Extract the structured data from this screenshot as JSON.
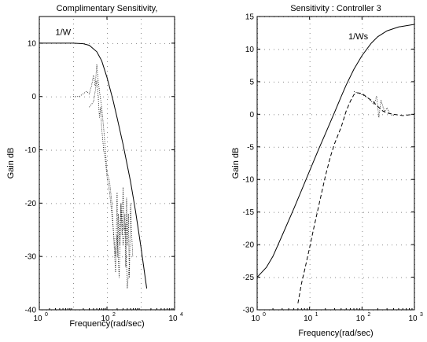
{
  "chart_data": [
    {
      "type": "line",
      "title": "Complimentary Sensitivity,",
      "xlabel": "Frequency(rad/sec)",
      "ylabel": "Gain dB",
      "xscale": "log",
      "xlim": [
        1,
        10000
      ],
      "ylim": [
        -40,
        15
      ],
      "xticks": [
        1,
        100,
        10000
      ],
      "xtick_labels": [
        {
          "base": "10",
          "exp": "0"
        },
        {
          "base": "10",
          "exp": "2"
        },
        {
          "base": "10",
          "exp": "4"
        }
      ],
      "yticks": [
        -40,
        -30,
        -20,
        -10,
        0,
        10
      ],
      "ytick_labels": [
        "-40",
        "-30",
        "-20",
        "-10",
        "0",
        "10"
      ],
      "annotations": [
        {
          "text": "1/W",
          "x": 3,
          "y": 11.5
        }
      ],
      "series": [
        {
          "name": "1/W",
          "style": "solid",
          "x": [
            1,
            10,
            20,
            30,
            50,
            70,
            100,
            150,
            200,
            300,
            500,
            700,
            1000,
            1500
          ],
          "y": [
            10,
            10,
            9.9,
            9.6,
            8.4,
            6.7,
            3.6,
            -0.6,
            -4.0,
            -9.0,
            -16.0,
            -21.5,
            -28.0,
            -36.0
          ]
        },
        {
          "style": "dotted",
          "x": [
            10,
            15,
            20,
            25,
            30,
            35,
            40,
            45,
            50,
            55,
            60,
            70,
            80,
            90,
            100,
            120,
            140,
            160,
            180,
            200,
            210,
            220,
            240,
            260,
            280,
            300,
            320,
            340,
            360,
            380,
            400,
            430,
            460,
            500,
            540,
            580
          ],
          "y": [
            0,
            0,
            0.5,
            1,
            0.5,
            2,
            4,
            2,
            6,
            3,
            1,
            -2,
            -6,
            -10,
            -14,
            -16,
            -20,
            -27,
            -33,
            -18,
            -30,
            -22,
            -28,
            -20,
            -26,
            -17,
            -25,
            -22,
            -32,
            -19,
            -28,
            -22,
            -34,
            -20,
            -26,
            -30
          ]
        },
        {
          "style": "dotted",
          "x": [
            30,
            40,
            45,
            50,
            55,
            60,
            65,
            70,
            80,
            90,
            100,
            120,
            150,
            180,
            200,
            230,
            260,
            300,
            350,
            400,
            450
          ],
          "y": [
            -2,
            -1,
            1,
            3,
            0,
            -4,
            -2,
            -6,
            -10,
            -12,
            -15,
            -18,
            -24,
            -30,
            -26,
            -34,
            -20,
            -28,
            -24,
            -36,
            -32
          ]
        }
      ]
    },
    {
      "type": "line",
      "title": "Sensitivity : Controller 3",
      "xlabel": "Frequency(rad/sec)",
      "ylabel": "Gain dB",
      "xscale": "log",
      "xlim": [
        1,
        1000
      ],
      "ylim": [
        -30,
        15
      ],
      "xticks": [
        1,
        10,
        100,
        1000
      ],
      "xtick_labels": [
        {
          "base": "10",
          "exp": "0"
        },
        {
          "base": "10",
          "exp": "1"
        },
        {
          "base": "10",
          "exp": "2"
        },
        {
          "base": "10",
          "exp": "3"
        }
      ],
      "yticks": [
        -30,
        -25,
        -20,
        -15,
        -10,
        -5,
        0,
        5,
        10,
        15
      ],
      "ytick_labels": [
        "-30",
        "-25",
        "-20",
        "-15",
        "-10",
        "-5",
        "0",
        "5",
        "10",
        "15"
      ],
      "annotations": [
        {
          "text": "1/Ws",
          "x": 55,
          "y": 11.5
        }
      ],
      "series": [
        {
          "name": "1/Ws",
          "style": "solid",
          "x": [
            1,
            1.5,
            2,
            3,
            5,
            7,
            10,
            15,
            20,
            30,
            40,
            50,
            70,
            100,
            150,
            200,
            300,
            500,
            1000
          ],
          "y": [
            -25,
            -23.5,
            -21.8,
            -18.6,
            -14.5,
            -11.7,
            -8.7,
            -5.3,
            -3.0,
            0.3,
            2.7,
            4.5,
            6.9,
            9.0,
            10.9,
            11.9,
            12.8,
            13.4,
            13.8
          ]
        },
        {
          "style": "dashed",
          "x": [
            6,
            7,
            8,
            10,
            12,
            15,
            20,
            25,
            30,
            40,
            50,
            60,
            70,
            80,
            100,
            130,
            160,
            200,
            250,
            300,
            400,
            600,
            1000
          ],
          "y": [
            -29,
            -26,
            -24,
            -20.5,
            -17.5,
            -14,
            -9.5,
            -6.5,
            -4.5,
            -2,
            0.5,
            2,
            3,
            3.3,
            3.2,
            2.5,
            2,
            1.2,
            0.5,
            0.2,
            0,
            -0.2,
            0
          ]
        },
        {
          "style": "dotted",
          "x": [
            70,
            90,
            110,
            130,
            150,
            170,
            190,
            210,
            230,
            250,
            270,
            300,
            340,
            380,
            430
          ],
          "y": [
            3.5,
            3.2,
            2.8,
            2.5,
            2.0,
            1.5,
            2.8,
            -0.5,
            2.2,
            1.2,
            0.4,
            1.0,
            0.1,
            -0.2,
            0.0
          ]
        }
      ]
    }
  ]
}
